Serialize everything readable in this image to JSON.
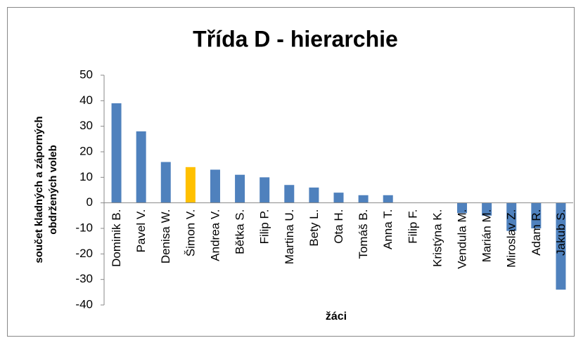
{
  "chart_data": {
    "type": "bar",
    "title": "Třída D - hierarchie",
    "x_label": "žáci",
    "y_label": [
      "součet kladných a záporných",
      "obdržených voleb"
    ],
    "categories": [
      "Dominik B.",
      "Pavel V.",
      "Denisa W.",
      "Šimon V.",
      "Andrea V.",
      "Bětka S.",
      "Filip P.",
      "Martina U.",
      "Bety L.",
      "Ota H.",
      "Tomáš B.",
      "Anna T.",
      "Filip F.",
      "Kristýna K.",
      "Vendula M.",
      "Marián M.",
      "Miroslav Z.",
      "Adam R.",
      "Jakub S."
    ],
    "values": [
      39,
      28,
      16,
      14,
      13,
      11,
      10,
      7,
      6,
      4,
      3,
      3,
      0,
      0,
      -4,
      -5,
      -11,
      -10,
      -34
    ],
    "colors": [
      "#4f81bd",
      "#4f81bd",
      "#4f81bd",
      "#ffc000",
      "#4f81bd",
      "#4f81bd",
      "#4f81bd",
      "#4f81bd",
      "#4f81bd",
      "#4f81bd",
      "#4f81bd",
      "#4f81bd",
      "#4f81bd",
      "#4f81bd",
      "#4f81bd",
      "#4f81bd",
      "#4f81bd",
      "#4f81bd",
      "#4f81bd"
    ],
    "ylim": [
      -40,
      50
    ],
    "yticks": [
      -40,
      -30,
      -20,
      -10,
      0,
      10,
      20,
      30,
      40,
      50
    ],
    "grid": false
  }
}
